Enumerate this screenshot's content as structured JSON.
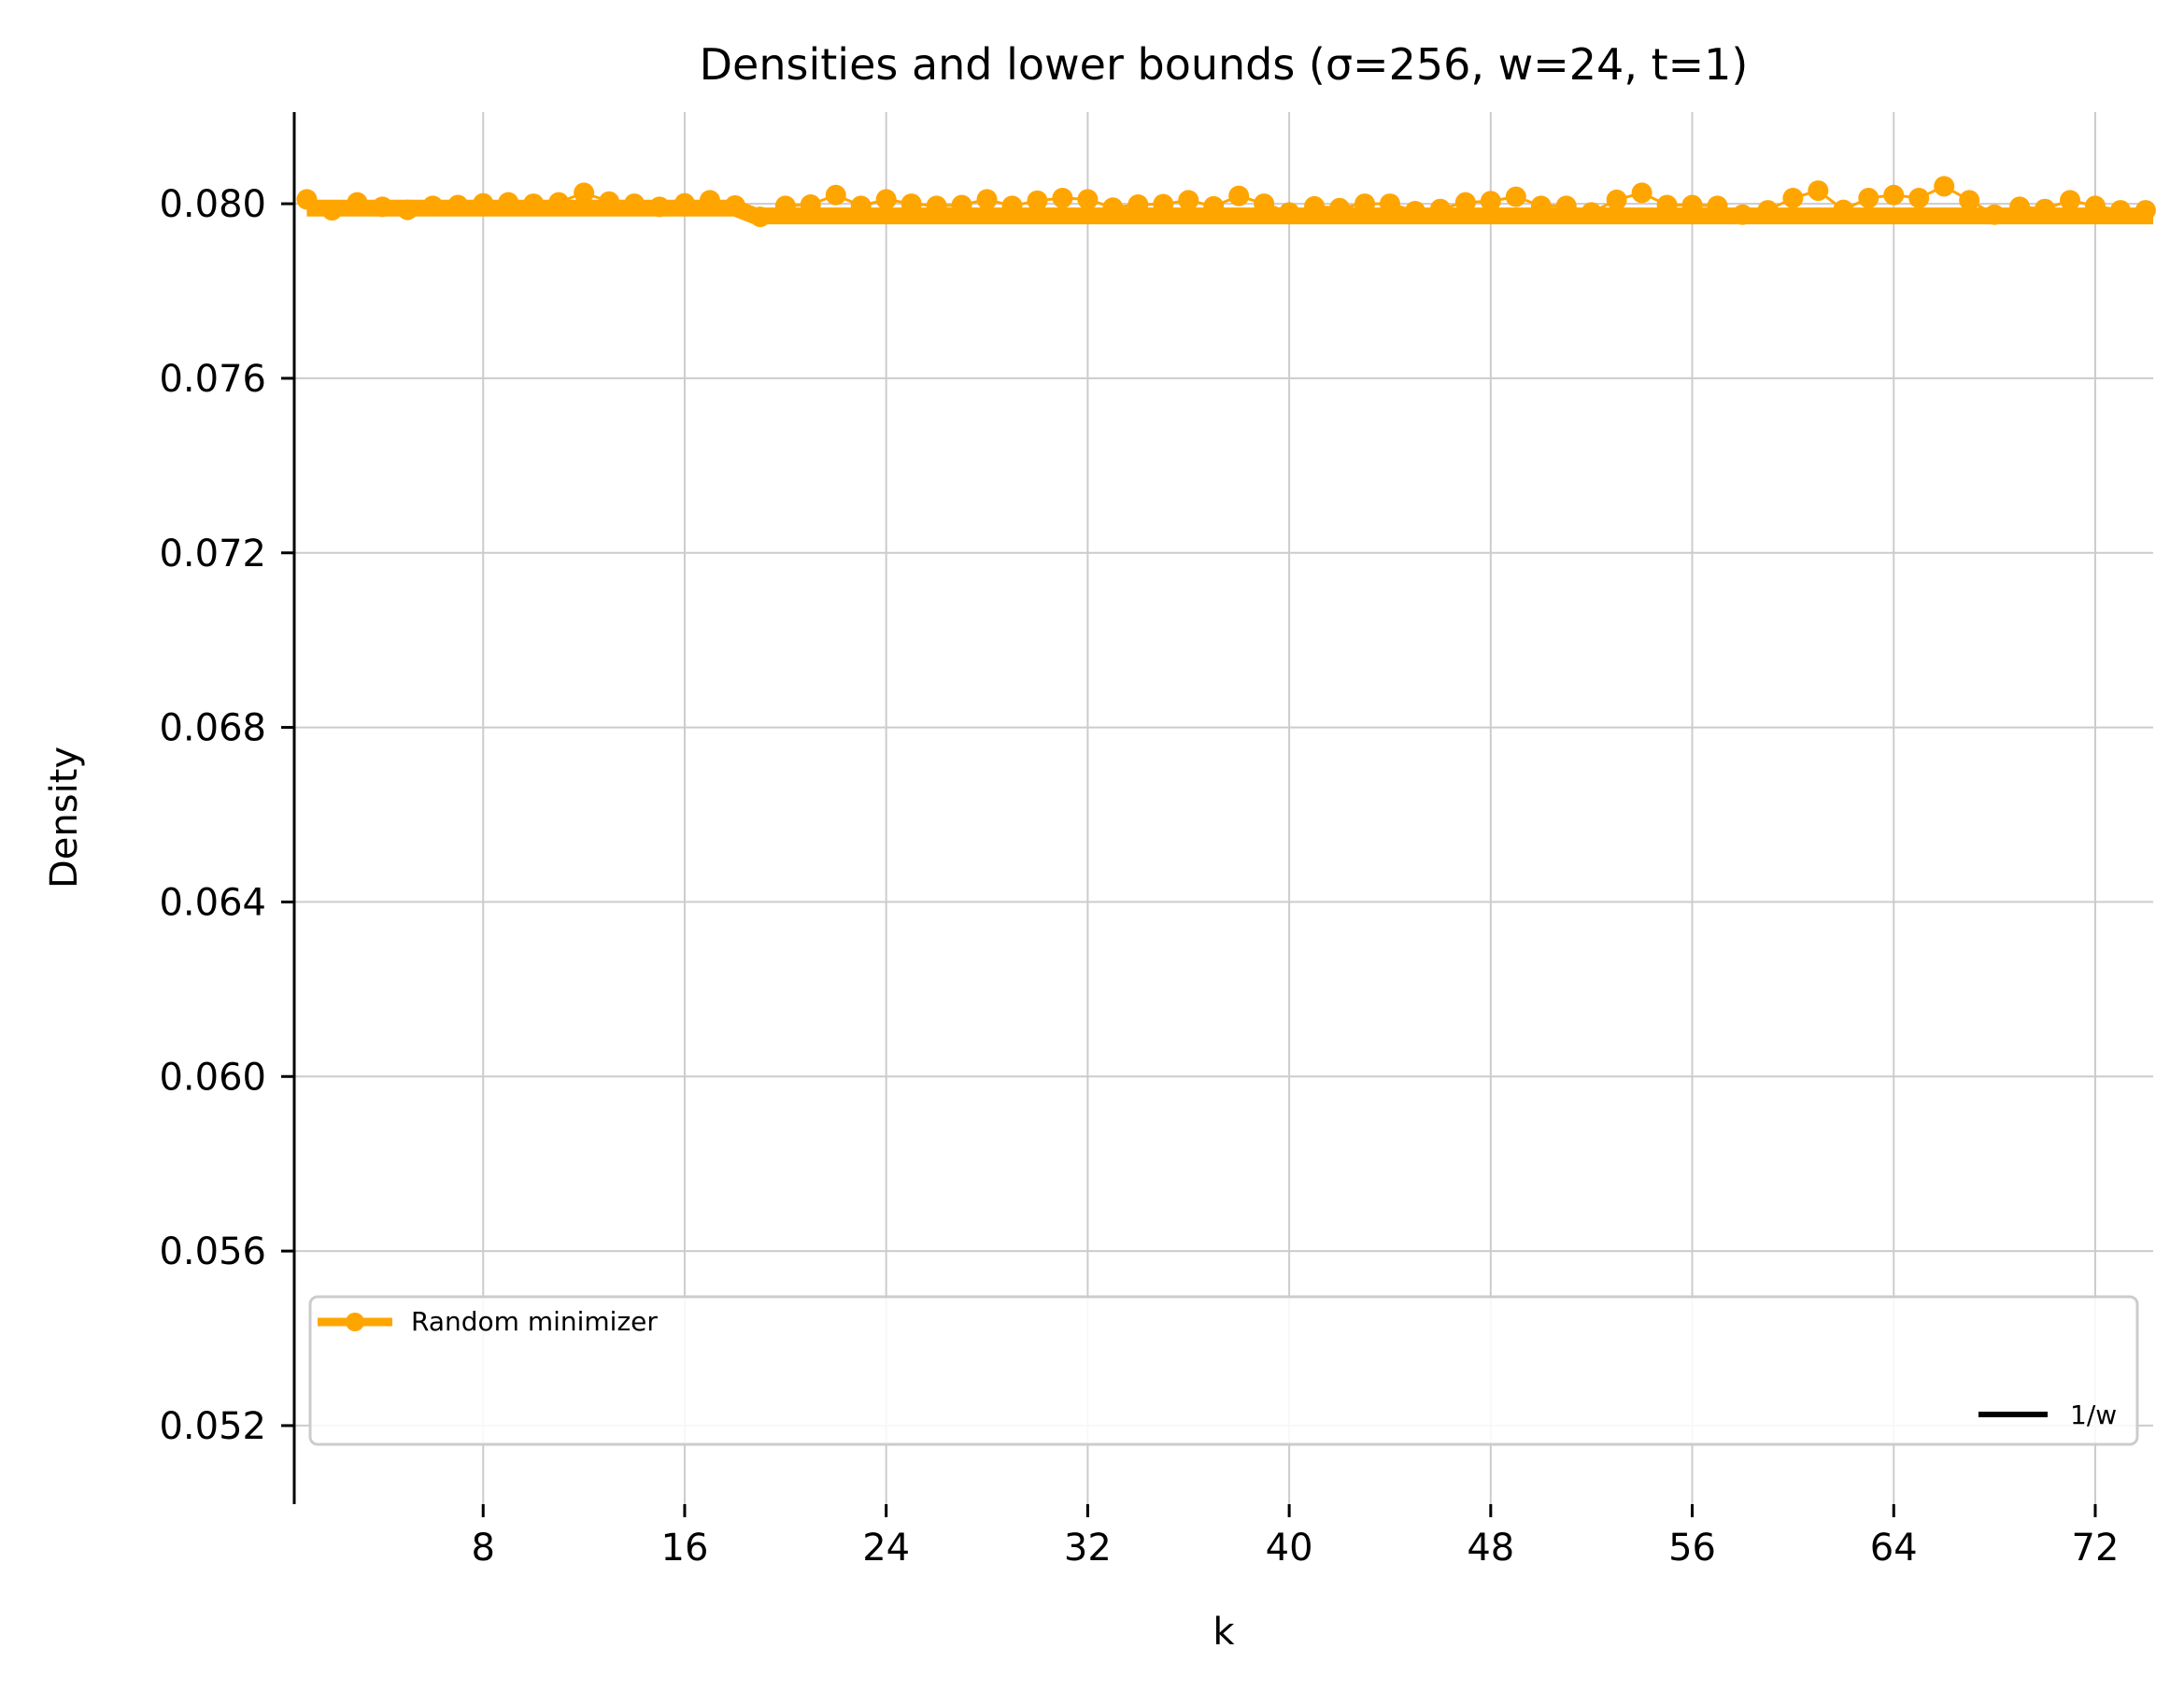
{
  "chart_data": {
    "type": "line",
    "title": "Densities and lower bounds (σ=256, w=24, t=1)",
    "xlabel": "k",
    "ylabel": "Density",
    "xlim": [
      0.5,
      74.3
    ],
    "ylim": [
      0.0502,
      0.0821
    ],
    "x_ticks": [
      8,
      16,
      24,
      32,
      40,
      48,
      56,
      64,
      72
    ],
    "y_ticks": [
      0.052,
      0.056,
      0.06,
      0.064,
      0.068,
      0.072,
      0.076,
      0.08
    ],
    "y_tick_labels": [
      "0.052",
      "0.056",
      "0.060",
      "0.064",
      "0.068",
      "0.072",
      "0.076",
      "0.080"
    ],
    "grid": true,
    "legend_placement": "bottom",
    "colors": {
      "random_minimizer": "#FFA500",
      "one_over_w": "#000000",
      "grid": "#cccccc"
    },
    "series": [
      {
        "name": "Random minimizer",
        "style": "thick-line-with-markers",
        "x": [
          1,
          2,
          3,
          4,
          5,
          6,
          7,
          8,
          9,
          10,
          11,
          12,
          13,
          14,
          15,
          16,
          17,
          18,
          19,
          20,
          21,
          22,
          23,
          24,
          25,
          26,
          27,
          28,
          29,
          30,
          31,
          32,
          33,
          34,
          35,
          36,
          37,
          38,
          39,
          40,
          41,
          42,
          43,
          44,
          45,
          46,
          47,
          48,
          49,
          50,
          51,
          52,
          53,
          54,
          55,
          56,
          57,
          58,
          59,
          60,
          61,
          62,
          63,
          64,
          65,
          66,
          67,
          68,
          69,
          70,
          71,
          72,
          73,
          74
        ],
        "values": [
          0.0801,
          0.07985,
          0.08003,
          0.07993,
          0.07986,
          0.07995,
          0.07997,
          0.08001,
          0.08003,
          0.08,
          0.08003,
          0.08025,
          0.08005,
          0.08,
          0.07993,
          0.08001,
          0.08008,
          0.07996,
          0.0797,
          0.07995,
          0.07998,
          0.0802,
          0.07995,
          0.0801,
          0.08,
          0.07995,
          0.07997,
          0.0801,
          0.07995,
          0.08007,
          0.08013,
          0.0801,
          0.07991,
          0.07998,
          0.07999,
          0.08008,
          0.07994,
          0.08018,
          0.08,
          0.0798,
          0.07994,
          0.0799,
          0.08,
          0.08,
          0.07983,
          0.07988,
          0.08003,
          0.08006,
          0.08016,
          0.07995,
          0.07995,
          0.0798,
          0.08009,
          0.08025,
          0.07997,
          0.07997,
          0.07995,
          0.07975,
          0.07985,
          0.08013,
          0.0803,
          0.07986,
          0.08013,
          0.0802,
          0.08013,
          0.0804,
          0.08008,
          0.07975,
          0.07993,
          0.07988,
          0.08008,
          0.07995,
          0.07985,
          0.07985
        ]
      },
      {
        "name": "1/w",
        "style": "line",
        "x": [
          1,
          74.3
        ],
        "values": [
          0.0798,
          0.0798
        ]
      }
    ],
    "bound_segments": [
      {
        "x": [
          1,
          18
        ],
        "y": 0.0799
      },
      {
        "x": [
          18.8,
          74.3
        ],
        "y": 0.07972
      }
    ]
  }
}
